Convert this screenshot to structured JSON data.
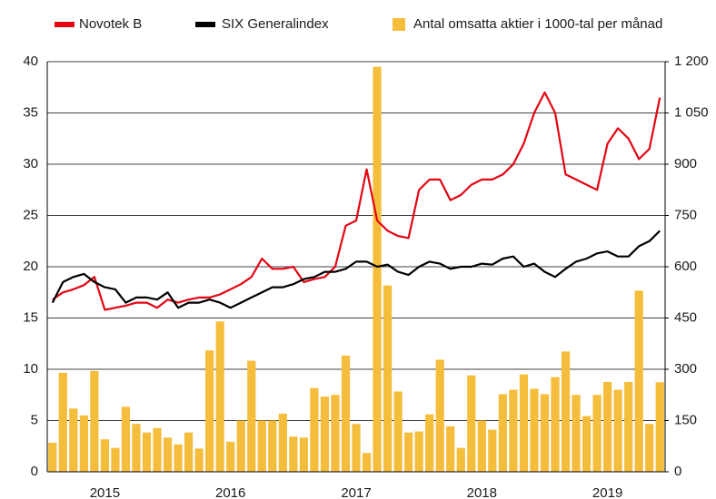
{
  "chart_data": {
    "type": "combo",
    "categories": [
      null,
      null,
      null,
      null,
      null,
      "2015",
      null,
      null,
      null,
      null,
      null,
      null,
      null,
      null,
      null,
      null,
      null,
      "2016",
      null,
      null,
      null,
      null,
      null,
      null,
      null,
      null,
      null,
      null,
      null,
      "2017",
      null,
      null,
      null,
      null,
      null,
      null,
      null,
      null,
      null,
      null,
      null,
      "2018",
      null,
      null,
      null,
      null,
      null,
      null,
      null,
      null,
      null,
      null,
      null,
      "2019",
      null,
      null,
      null,
      null,
      null
    ],
    "series": [
      {
        "name": "Antal omsatta aktier i 1000-tal per månad",
        "type": "bar",
        "axis": "y2",
        "color": "#f5bd3c",
        "values": [
          85,
          290,
          185,
          165,
          295,
          95,
          70,
          190,
          140,
          115,
          128,
          100,
          80,
          115,
          68,
          355,
          440,
          88,
          150,
          325,
          150,
          150,
          170,
          103,
          100,
          245,
          220,
          225,
          340,
          140,
          55,
          1185,
          545,
          235,
          115,
          118,
          168,
          328,
          133,
          70,
          282,
          150,
          123,
          227,
          240,
          285,
          243,
          227,
          277,
          352,
          225,
          163,
          225,
          263,
          240,
          263,
          530,
          140,
          262
        ]
      },
      {
        "name": "Novotek B",
        "type": "line",
        "color": "#e30613",
        "values": [
          16.8,
          17.5,
          17.8,
          18.2,
          19,
          15.8,
          16,
          16.2,
          16.5,
          16.5,
          16,
          16.8,
          16.5,
          16.8,
          17,
          17,
          17.3,
          17.8,
          18.3,
          19,
          20.8,
          19.8,
          19.8,
          20,
          18.5,
          18.8,
          19,
          20,
          24,
          24.5,
          29.5,
          24.5,
          23.5,
          23,
          22.8,
          27.5,
          28.5,
          28.5,
          26.5,
          27,
          28,
          28.5,
          28.5,
          29,
          30,
          32,
          35,
          37,
          35,
          29,
          28.5,
          28,
          27.5,
          32,
          33.5,
          32.5,
          30.5,
          31.5,
          36.5
        ]
      },
      {
        "name": "SIX Generalindex",
        "type": "line",
        "color": "#000000",
        "values": [
          16.5,
          18.5,
          19,
          19.3,
          18.5,
          18,
          17.8,
          16.5,
          17,
          17,
          16.8,
          17.5,
          16,
          16.5,
          16.5,
          16.8,
          16.5,
          16,
          16.5,
          17,
          17.5,
          18,
          18,
          18.3,
          18.8,
          19,
          19.5,
          19.5,
          19.8,
          20.5,
          20.5,
          20,
          20.2,
          19.5,
          19.2,
          20,
          20.5,
          20.3,
          19.8,
          20,
          20,
          20.3,
          20.2,
          20.8,
          21,
          20,
          20.3,
          19.5,
          19,
          19.8,
          20.5,
          20.8,
          21.3,
          21.5,
          21,
          21,
          22,
          22.5,
          23.5
        ]
      }
    ],
    "ylim": [
      0,
      40
    ],
    "yticks": [
      0,
      5,
      10,
      15,
      20,
      25,
      30,
      35,
      40
    ],
    "y2lim": [
      0,
      1200
    ],
    "y2ticks": [
      0,
      150,
      300,
      450,
      600,
      750,
      900,
      {
        "value": 1050,
        "label": "1 050"
      },
      {
        "value": 1200,
        "label": "1 200"
      }
    ],
    "grid": true,
    "legend": "top"
  }
}
